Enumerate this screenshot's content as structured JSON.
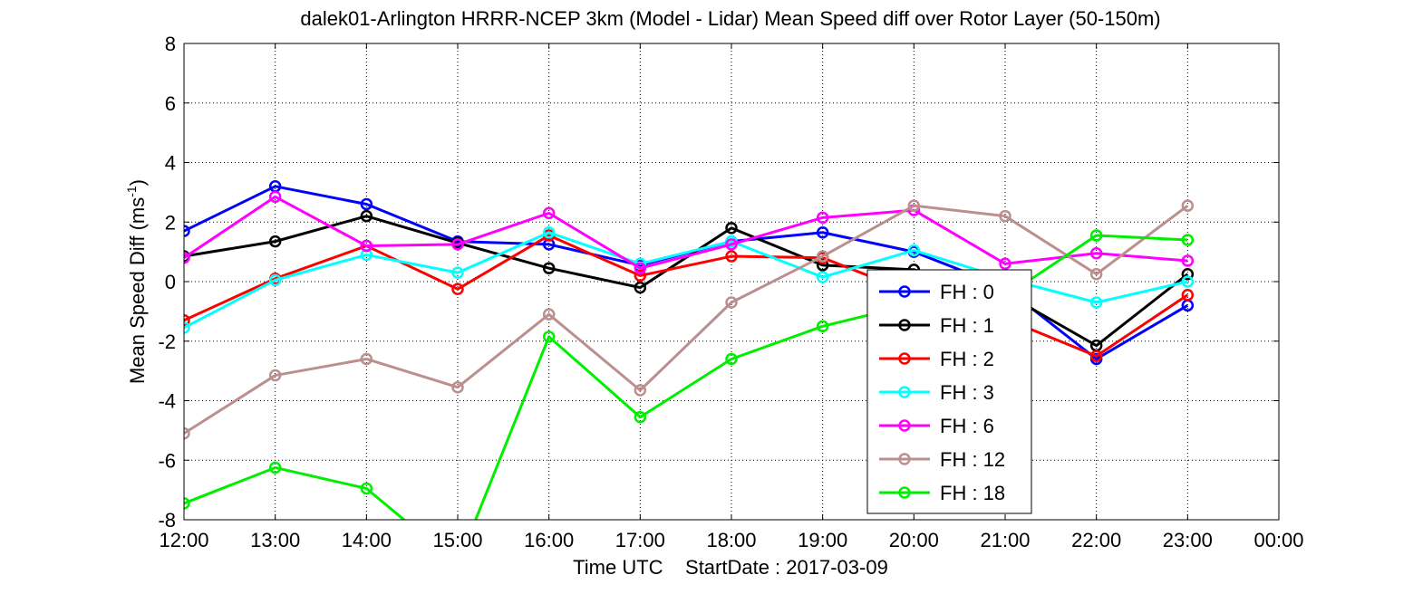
{
  "chart_data": {
    "type": "line",
    "title": "dalek01-Arlington HRRR-NCEP 3km (Model - Lidar) Mean Speed diff over Rotor Layer (50-150m)",
    "xlabel": "Time UTC    StartDate : 2017-03-09",
    "ylabel_main": "Mean Speed Diff (ms",
    "ylabel_sup": "-1",
    "ylabel_end": ")",
    "x_tick_labels": [
      "12:00",
      "13:00",
      "14:00",
      "15:00",
      "16:00",
      "17:00",
      "18:00",
      "19:00",
      "20:00",
      "21:00",
      "22:00",
      "23:00",
      "00:00"
    ],
    "y_ticks": [
      -8,
      -6,
      -4,
      -2,
      0,
      2,
      4,
      6,
      8
    ],
    "xlim": [
      0,
      12
    ],
    "ylim": [
      -8,
      8
    ],
    "grid": true,
    "legend_position": "center-right",
    "series": [
      {
        "name": "FH : 0",
        "color": "#0000ff",
        "values": [
          1.7,
          3.2,
          2.6,
          1.35,
          1.25,
          0.55,
          1.35,
          1.65,
          1.0,
          -0.2,
          -2.6,
          -0.8
        ]
      },
      {
        "name": "FH : 1",
        "color": "#000000",
        "values": [
          0.85,
          1.35,
          2.2,
          1.3,
          0.45,
          -0.2,
          1.8,
          0.55,
          0.4,
          -0.4,
          -2.15,
          0.25
        ]
      },
      {
        "name": "FH : 2",
        "color": "#ff0000",
        "values": [
          -1.3,
          0.1,
          1.2,
          -0.25,
          1.55,
          0.2,
          0.85,
          0.8,
          -0.4,
          -1.25,
          -2.5,
          -0.45
        ]
      },
      {
        "name": "FH : 3",
        "color": "#00ffff",
        "values": [
          -1.55,
          0.05,
          0.9,
          0.3,
          1.65,
          0.6,
          1.35,
          0.15,
          1.05,
          0.1,
          -0.7,
          0.0
        ]
      },
      {
        "name": "FH : 6",
        "color": "#ff00ff",
        "values": [
          0.8,
          2.85,
          1.2,
          1.25,
          2.3,
          0.45,
          1.25,
          2.15,
          2.4,
          0.6,
          0.95,
          0.7
        ]
      },
      {
        "name": "FH : 12",
        "color": "#bc8f8f",
        "values": [
          -5.1,
          -3.15,
          -2.6,
          -3.55,
          -1.1,
          -3.65,
          -0.7,
          0.85,
          2.55,
          2.2,
          0.25,
          2.55
        ]
      },
      {
        "name": "FH : 18",
        "color": "#00ee00",
        "values": [
          -7.45,
          -6.25,
          -6.95,
          -9.5,
          -1.85,
          -4.55,
          -2.6,
          -1.5,
          -0.75,
          -0.5,
          1.55,
          1.4
        ]
      }
    ]
  }
}
